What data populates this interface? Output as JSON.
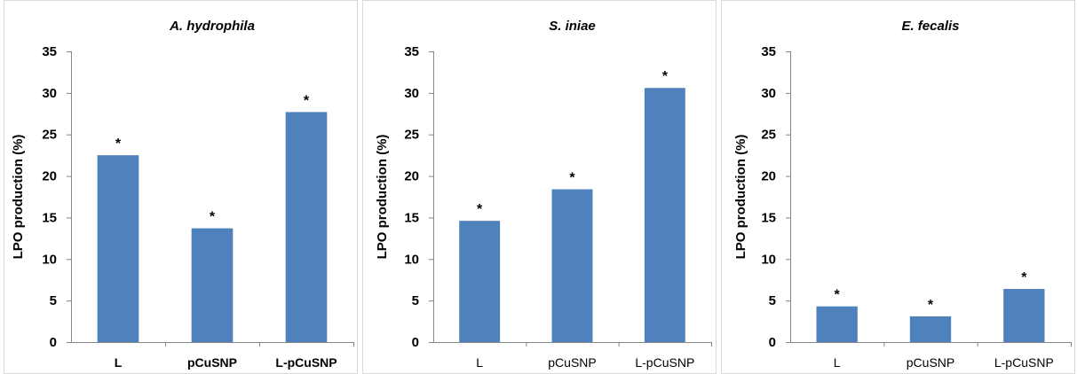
{
  "chart_data": [
    {
      "type": "bar",
      "title": "A. hydrophila",
      "ylabel": "LPO production (%)",
      "categories": [
        "L",
        "pCuSNP",
        "L-pCuSNP"
      ],
      "values": [
        22.5,
        13.7,
        27.7
      ],
      "annotations": [
        "*",
        "*",
        "*"
      ],
      "ylim": [
        0,
        35
      ],
      "yticks": [
        "0",
        "5",
        "10",
        "15",
        "20",
        "25",
        "30",
        "35"
      ],
      "bar_color": "#4f81bd",
      "grid": false,
      "legend": "none"
    },
    {
      "type": "bar",
      "title": "S. iniae",
      "ylabel": "LPO production (%)",
      "categories": [
        "L",
        "pCuSNP",
        "L-pCuSNP"
      ],
      "values": [
        14.6,
        18.4,
        30.6
      ],
      "annotations": [
        "*",
        "*",
        "*"
      ],
      "ylim": [
        0,
        35
      ],
      "yticks": [
        "0",
        "5",
        "10",
        "15",
        "20",
        "25",
        "30",
        "35"
      ],
      "bar_color": "#4f81bd",
      "grid": false,
      "legend": "none"
    },
    {
      "type": "bar",
      "title": "E. fecalis",
      "ylabel": "LPO production (%)",
      "categories": [
        "L",
        "pCuSNP",
        "L-pCuSNP"
      ],
      "values": [
        4.3,
        3.1,
        6.4
      ],
      "annotations": [
        "*",
        "*",
        "*"
      ],
      "ylim": [
        0,
        35
      ],
      "yticks": [
        "0",
        "5",
        "10",
        "15",
        "20",
        "25",
        "30",
        "35"
      ],
      "bar_color": "#4f81bd",
      "grid": false,
      "legend": "none"
    }
  ]
}
